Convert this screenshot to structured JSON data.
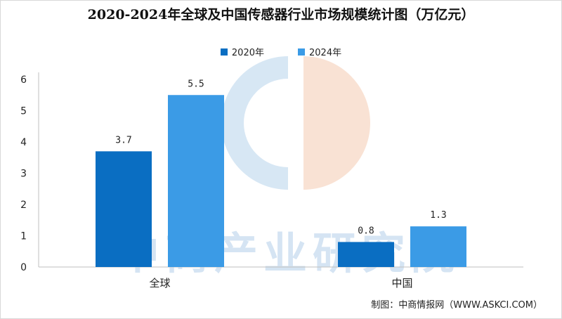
{
  "chart_data": {
    "type": "bar",
    "title": "2020-2024年全球及中国传感器行业市场规模统计图（万亿元）",
    "categories": [
      "全球",
      "中国"
    ],
    "series": [
      {
        "name": "2020年",
        "values": [
          3.7,
          0.8
        ],
        "color": "#0a6ec2"
      },
      {
        "name": "2024年",
        "values": [
          5.5,
          1.3
        ],
        "color": "#3b9be6"
      }
    ],
    "ylim": [
      0,
      6
    ],
    "yticks": [
      0,
      1,
      2,
      3,
      4,
      5,
      6
    ],
    "legend_position": "top-center",
    "grid": false
  },
  "watermark_text": "中商产业研究院",
  "source": "制图：中商情报网（WWW.ASKCI.COM）"
}
